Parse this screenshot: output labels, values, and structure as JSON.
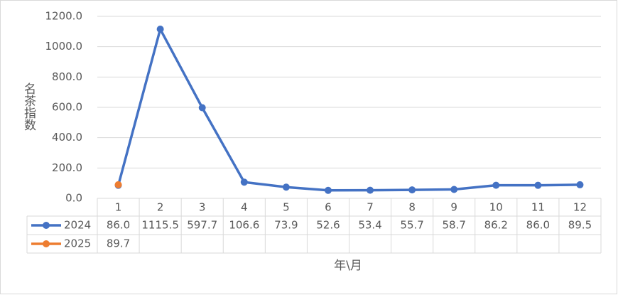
{
  "chart_data": {
    "type": "line",
    "y_label": "名茶指数",
    "x_label": "年\\月",
    "categories": [
      "1",
      "2",
      "3",
      "4",
      "5",
      "6",
      "7",
      "8",
      "9",
      "10",
      "11",
      "12"
    ],
    "series": [
      {
        "name": "2024",
        "color": "#4472c4",
        "values": [
          86.0,
          1115.5,
          597.7,
          106.6,
          73.9,
          52.6,
          53.4,
          55.7,
          58.7,
          86.2,
          86.0,
          89.5
        ],
        "value_labels": [
          "86.0",
          "1115.5",
          "597.7",
          "106.6",
          "73.9",
          "52.6",
          "53.4",
          "55.7",
          "58.7",
          "86.2",
          "86.0",
          "89.5"
        ]
      },
      {
        "name": "2025",
        "color": "#ed7d31",
        "values": [
          89.7,
          null,
          null,
          null,
          null,
          null,
          null,
          null,
          null,
          null,
          null,
          null
        ],
        "value_labels": [
          "89.7",
          null,
          null,
          null,
          null,
          null,
          null,
          null,
          null,
          null,
          null,
          null
        ]
      }
    ],
    "ylim": [
      0,
      1200
    ],
    "yticks": [
      {
        "value": 0,
        "label": "0.0"
      },
      {
        "value": 200,
        "label": "200.0"
      },
      {
        "value": 400,
        "label": "400.0"
      },
      {
        "value": 600,
        "label": "600.0"
      },
      {
        "value": 800,
        "label": "800.0"
      },
      {
        "value": 1000,
        "label": "1000.0"
      },
      {
        "value": 1200,
        "label": "1200.0"
      }
    ],
    "grid": true
  }
}
